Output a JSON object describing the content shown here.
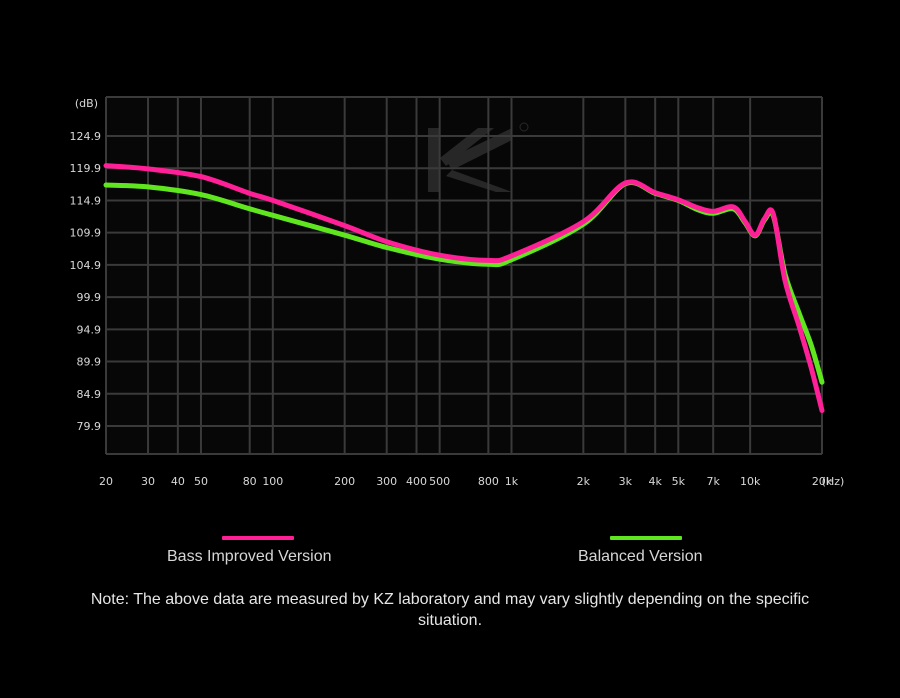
{
  "chart_data": {
    "type": "line",
    "x_scale": "log",
    "xlabel": "(Hz)",
    "ylabel": "(dB)",
    "ylim": [
      74.9,
      129.9
    ],
    "xlim": [
      20,
      20000
    ],
    "yticks": [
      "124.9",
      "119.9",
      "114.9",
      "109.9",
      "104.9",
      "99.9",
      "94.9",
      "89.9",
      "84.9",
      "79.9"
    ],
    "xticks": [
      {
        "value": 20,
        "label": "20"
      },
      {
        "value": 30,
        "label": "30"
      },
      {
        "value": 40,
        "label": "40"
      },
      {
        "value": 50,
        "label": "50"
      },
      {
        "value": 80,
        "label": "80"
      },
      {
        "value": 100,
        "label": "100"
      },
      {
        "value": 200,
        "label": "200"
      },
      {
        "value": 300,
        "label": "300"
      },
      {
        "value": 400,
        "label": "400"
      },
      {
        "value": 500,
        "label": "500"
      },
      {
        "value": 800,
        "label": "800"
      },
      {
        "value": 1000,
        "label": "1k"
      },
      {
        "value": 2000,
        "label": "2k"
      },
      {
        "value": 3000,
        "label": "3k"
      },
      {
        "value": 4000,
        "label": "4k"
      },
      {
        "value": 5000,
        "label": "5k"
      },
      {
        "value": 7000,
        "label": "7k"
      },
      {
        "value": 10000,
        "label": "10k"
      },
      {
        "value": 20000,
        "label": "20k"
      }
    ],
    "grid": true,
    "legend_position": "bottom",
    "watermark": "KZ",
    "series": [
      {
        "name": "Balanced Version",
        "color": "#5fe61e",
        "points": [
          [
            20,
            117.3
          ],
          [
            30,
            117.0
          ],
          [
            50,
            115.8
          ],
          [
            80,
            113.6
          ],
          [
            100,
            112.6
          ],
          [
            200,
            109.5
          ],
          [
            300,
            107.6
          ],
          [
            500,
            105.8
          ],
          [
            800,
            105.0
          ],
          [
            1000,
            105.7
          ],
          [
            2000,
            111.2
          ],
          [
            3000,
            117.5
          ],
          [
            4000,
            116.0
          ],
          [
            5000,
            114.9
          ],
          [
            6000,
            113.5
          ],
          [
            7000,
            112.9
          ],
          [
            8500,
            113.6
          ],
          [
            9500,
            111.5
          ],
          [
            10500,
            109.4
          ],
          [
            11500,
            111.9
          ],
          [
            12500,
            112.5
          ],
          [
            14000,
            103.5
          ],
          [
            16000,
            97.5
          ],
          [
            18000,
            92.5
          ],
          [
            20000,
            86.7
          ]
        ]
      },
      {
        "name": "Bass Improved Version",
        "color": "#ff1f96",
        "points": [
          [
            20,
            120.3
          ],
          [
            30,
            119.8
          ],
          [
            50,
            118.6
          ],
          [
            80,
            116.0
          ],
          [
            100,
            114.9
          ],
          [
            200,
            111.0
          ],
          [
            300,
            108.5
          ],
          [
            500,
            106.4
          ],
          [
            800,
            105.6
          ],
          [
            1000,
            106.3
          ],
          [
            2000,
            111.6
          ],
          [
            3000,
            117.6
          ],
          [
            4000,
            116.1
          ],
          [
            5000,
            115.0
          ],
          [
            6000,
            113.8
          ],
          [
            7000,
            113.2
          ],
          [
            8500,
            113.9
          ],
          [
            9500,
            111.7
          ],
          [
            10500,
            109.5
          ],
          [
            11500,
            112.1
          ],
          [
            12500,
            112.8
          ],
          [
            14000,
            102.5
          ],
          [
            16000,
            95.5
          ],
          [
            18000,
            89.0
          ],
          [
            20000,
            82.3
          ]
        ]
      }
    ]
  },
  "legend": {
    "bass_label": "Bass Improved Version",
    "bass_color": "#ff1f96",
    "balanced_label": "Balanced Version",
    "balanced_color": "#5fe61e"
  },
  "note": "Note: The above data are measured by KZ laboratory and may vary slightly depending on the specific situation."
}
